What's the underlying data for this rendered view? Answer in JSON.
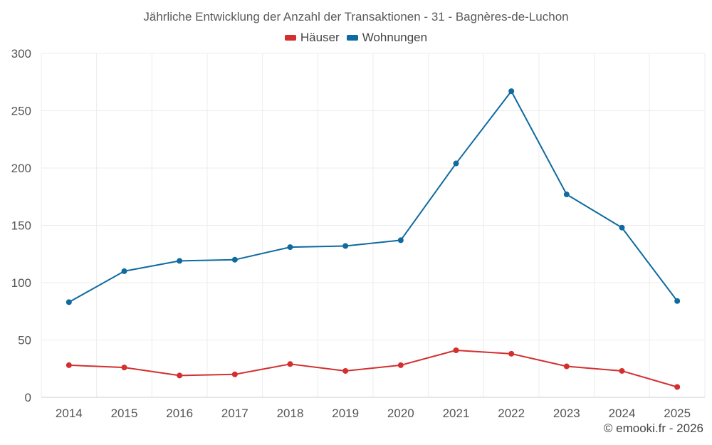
{
  "chart_data": {
    "type": "line",
    "title": "Jährliche Entwicklung der Anzahl der Transaktionen - 31 - Bagnères-de-Luchon",
    "categories": [
      "2014",
      "2015",
      "2016",
      "2017",
      "2018",
      "2019",
      "2020",
      "2021",
      "2022",
      "2023",
      "2024",
      "2025"
    ],
    "ylim": [
      0,
      300
    ],
    "yticks": [
      0,
      50,
      100,
      150,
      200,
      250,
      300
    ],
    "grid": true,
    "legend_position": "top-center",
    "series": [
      {
        "name": "Häuser",
        "color": "#d32f2f",
        "values": [
          28,
          26,
          19,
          20,
          29,
          23,
          28,
          41,
          38,
          27,
          23,
          9
        ]
      },
      {
        "name": "Wohnungen",
        "color": "#0e6aa0",
        "values": [
          83,
          110,
          119,
          120,
          131,
          132,
          137,
          204,
          267,
          177,
          148,
          84
        ]
      }
    ]
  },
  "credit": "© emooki.fr - 2026"
}
